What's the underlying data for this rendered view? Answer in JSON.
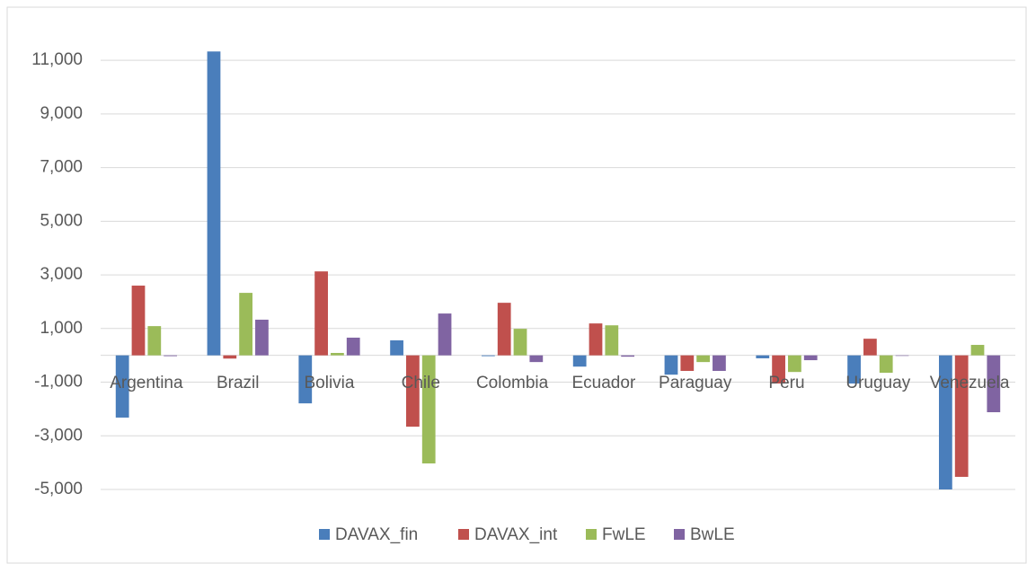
{
  "chart_data": {
    "type": "bar",
    "categories": [
      "Argentina",
      "Brazil",
      "Bolivia",
      "Chile",
      "Colombia",
      "Ecuador",
      "Paraguay",
      "Peru",
      "Uruguay",
      "Venezuela"
    ],
    "series": [
      {
        "name": "DAVAX_fin",
        "color": "#4a7ebb",
        "values": [
          -2320,
          11330,
          -1790,
          560,
          -30,
          -420,
          -720,
          -110,
          -1050,
          -5000
        ]
      },
      {
        "name": "DAVAX_int",
        "color": "#c0504d",
        "values": [
          2600,
          -120,
          3130,
          -2660,
          1960,
          1190,
          -580,
          -1050,
          620,
          -4530
        ]
      },
      {
        "name": "FwLE",
        "color": "#9bbb59",
        "values": [
          1090,
          2330,
          90,
          -4030,
          990,
          1120,
          -250,
          -620,
          -650,
          390
        ]
      },
      {
        "name": "BwLE",
        "color": "#8064a2",
        "values": [
          -30,
          1330,
          660,
          1560,
          -250,
          -50,
          -580,
          -180,
          -20,
          -2120
        ]
      }
    ],
    "ylim": [
      -5000,
      12000
    ],
    "yticks": [
      {
        "value": -5000,
        "label": "-5,000"
      },
      {
        "value": -3000,
        "label": "-3,000"
      },
      {
        "value": -1000,
        "label": "-1,000"
      },
      {
        "value": 1000,
        "label": "1,000"
      },
      {
        "value": 3000,
        "label": "3,000"
      },
      {
        "value": 5000,
        "label": "5,000"
      },
      {
        "value": 7000,
        "label": "7,000"
      },
      {
        "value": 9000,
        "label": "9,000"
      },
      {
        "value": 11000,
        "label": "11,000"
      }
    ],
    "grid": true,
    "legend": "bottom"
  }
}
